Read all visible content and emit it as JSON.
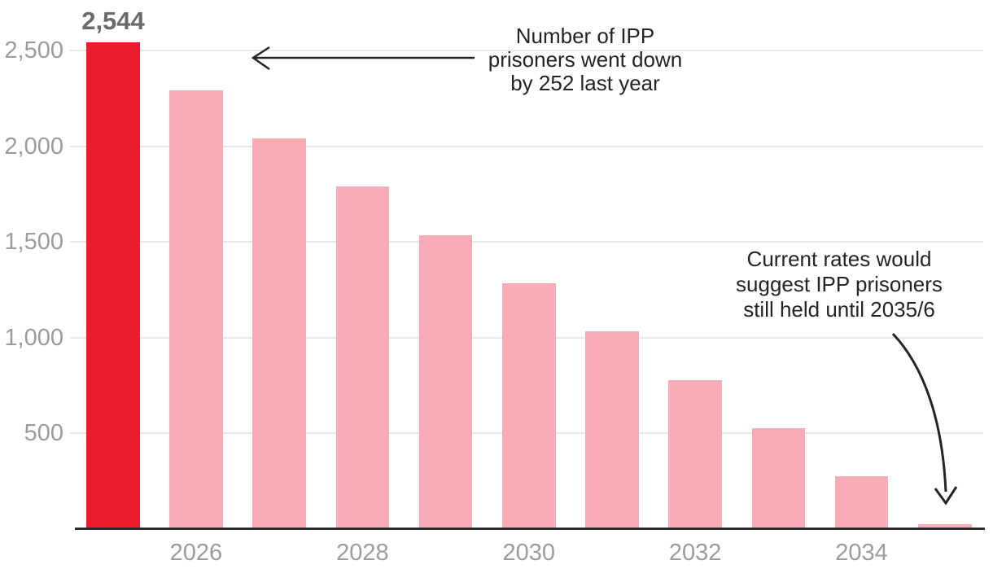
{
  "chart_data": {
    "type": "bar",
    "title": "",
    "xlabel": "",
    "ylabel": "",
    "categories": [
      "2025",
      "2026",
      "2027",
      "2028",
      "2029",
      "2030",
      "2031",
      "2032",
      "2033",
      "2034",
      "2035"
    ],
    "values": [
      2544,
      2292,
      2040,
      1788,
      1536,
      1284,
      1032,
      780,
      528,
      276,
      24
    ],
    "highlighted_index": 0,
    "bar_value_label": "2,544",
    "ylim": [
      0,
      2600
    ],
    "yticks": [
      {
        "value": 500,
        "label": "500"
      },
      {
        "value": 1000,
        "label": "1,000"
      },
      {
        "value": 1500,
        "label": "1,500"
      },
      {
        "value": 2000,
        "label": "2,000"
      },
      {
        "value": 2500,
        "label": "2,500"
      }
    ],
    "x_ticks": [
      {
        "index": 1,
        "label": "2026"
      },
      {
        "index": 3,
        "label": "2028"
      },
      {
        "index": 5,
        "label": "2030"
      },
      {
        "index": 7,
        "label": "2032"
      },
      {
        "index": 9,
        "label": "2034"
      }
    ],
    "grid": true,
    "legend": "none",
    "annotations": [
      {
        "text": "Number of IPP\nprisoners went down\nby 252 last year"
      },
      {
        "text": "Current rates would\nsuggest IPP prisoners\nstill held until 2035/6"
      }
    ],
    "colors": {
      "highlight_bar": "#ec1b2d",
      "bar": "#f8adb6",
      "gridline": "#e9e9e9",
      "axis_line": "#2b2b2b",
      "tick_text": "#9c9c9c",
      "value_label_text": "#6b6b6b",
      "annotation_text": "#242424",
      "arrow": "#242424"
    }
  }
}
